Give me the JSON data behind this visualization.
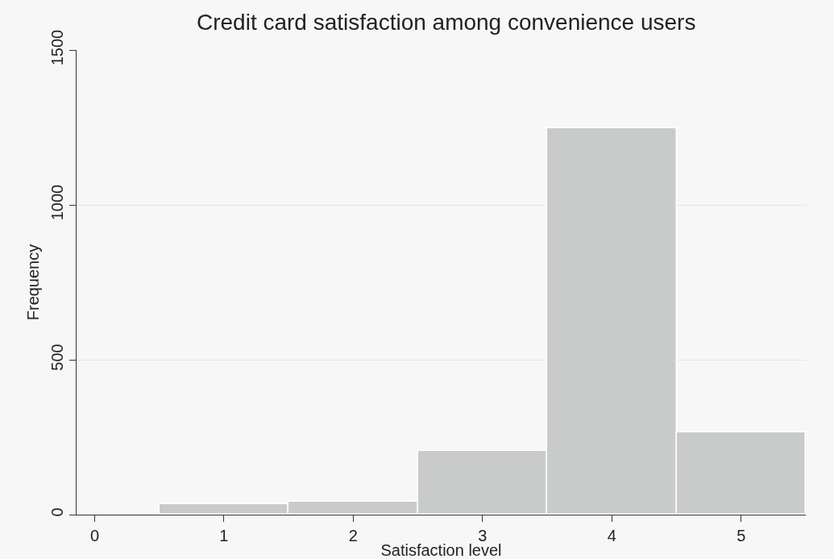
{
  "chart_data": {
    "type": "histogram",
    "title": "Credit card satisfaction among convenience users",
    "xlabel": "Satisfaction level",
    "ylabel": "Frequency",
    "bins": [
      0.5,
      1.5,
      2.5,
      3.5,
      4.5,
      5.5
    ],
    "values": [
      35,
      41,
      206,
      1247,
      265
    ],
    "color": "#c9cbcb",
    "xlim": [
      -0.14,
      5.5
    ],
    "xticks": [
      0,
      1,
      2,
      3,
      4,
      5
    ],
    "ylim": [
      0,
      1500
    ],
    "yticks": [
      0,
      500,
      1000,
      1500
    ],
    "grid": "y"
  }
}
